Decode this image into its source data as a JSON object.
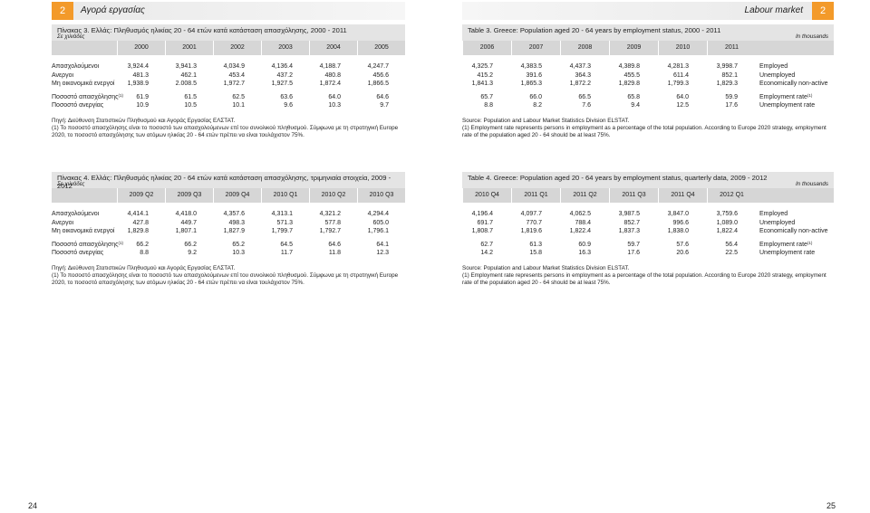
{
  "left": {
    "header": {
      "section_number": "2",
      "section_title": "Αγορά εργασίας"
    },
    "tables": [
      {
        "title": "Πίνακας 3. Ελλάς: Πληθυσμός ηλικίας 20 - 64 ετών κατά κατάσταση απασχόλησης, 2000 - 2011",
        "unit": "Σε χιλιάδες",
        "columns": [
          "2000",
          "2001",
          "2002",
          "2003",
          "2004",
          "2005"
        ],
        "groups": [
          [
            {
              "label": "Απασχολούμενοι",
              "values": [
                "3,924.4",
                "3,941.3",
                "4,034.9",
                "4,136.4",
                "4,188.7",
                "4,247.7"
              ]
            },
            {
              "label": "Ανεργοι",
              "values": [
                "481.3",
                "462.1",
                "453.4",
                "437.2",
                "480.8",
                "456.6"
              ]
            },
            {
              "label": "Μη οικονομικά ενεργοί",
              "values": [
                "1,938.9",
                "2.008.5",
                "1,972.7",
                "1,927.5",
                "1,872.4",
                "1,866.5"
              ]
            }
          ],
          [
            {
              "label": "Ποσοστό απασχόλησης",
              "sup": "(1)",
              "values": [
                "61.9",
                "61.5",
                "62.5",
                "63.6",
                "64.0",
                "64.6"
              ]
            },
            {
              "label": "Ποσοστό ανεργίας",
              "values": [
                "10.9",
                "10.5",
                "10.1",
                "9.6",
                "10.3",
                "9.7"
              ]
            }
          ]
        ],
        "source": "Πηγή: Διεύθυνση Στατιστικών Πληθυσμού και Αγοράς Εργασίας ΕΛΣΤΑΤ.",
        "note": "(1) Το ποσοστό απασχόλησης είναι το ποσοστό των απασχολούμενων επί του συνολικού πληθυσμού. Σύμφωνα με τη στρατηγική Europe 2020, το ποσοστό απασχόλησης των ατόμων ηλικίας 20 - 64 ετών πρέπει να είναι τουλάχιστον 75%."
      },
      {
        "title": "Πίνακας 4. Ελλάς: Πληθυσμός ηλικίας 20 - 64 ετών κατά κατάσταση απασχόλησης, τριμηνιαία στοιχεία, 2009 - 2012",
        "unit": "Σε χιλιάδες",
        "columns": [
          "2009 Q2",
          "2009 Q3",
          "2009 Q4",
          "2010 Q1",
          "2010 Q2",
          "2010 Q3"
        ],
        "groups": [
          [
            {
              "label": "Απασχολούμενοι",
              "values": [
                "4,414.1",
                "4,418.0",
                "4,357.6",
                "4,313.1",
                "4,321.2",
                "4,294.4"
              ]
            },
            {
              "label": "Ανεργοι",
              "values": [
                "427.8",
                "449.7",
                "498.3",
                "571.3",
                "577.8",
                "605.0"
              ]
            },
            {
              "label": "Μη οικονομικά ενεργοί",
              "values": [
                "1,829.8",
                "1,807.1",
                "1,827.9",
                "1,799.7",
                "1,792.7",
                "1,796.1"
              ]
            }
          ],
          [
            {
              "label": "Ποσοστό απασχόλησης",
              "sup": "(1)",
              "values": [
                "66.2",
                "66.2",
                "65.2",
                "64.5",
                "64.6",
                "64.1"
              ]
            },
            {
              "label": "Ποσοστό ανεργίας",
              "values": [
                "8.8",
                "9.2",
                "10.3",
                "11.7",
                "11.8",
                "12.3"
              ]
            }
          ]
        ],
        "source": "Πηγή: Διεύθυνση Στατιστικών Πληθυσμού και Αγοράς Εργασίας ΕΛΣΤΑΤ.",
        "note": "(1) Το ποσοστό απασχόλησης είναι το ποσοστό των απασχολούμενων επί του συνολικού πληθυσμού. Σύμφωνα με τη στρατηγική Europe 2020, το ποσοστό απασχόλησης των ατόμων ηλικίας 20 - 64 ετών πρέπει να είναι τουλάχιστον 75%."
      }
    ],
    "page_number": "24"
  },
  "right": {
    "header": {
      "section_number": "2",
      "section_title": "Labour market"
    },
    "tables": [
      {
        "title": "Table 3. Greece: Population aged 20 - 64 years by employment status, 2000 - 2011",
        "unit": "In thousands",
        "columns": [
          "2006",
          "2007",
          "2008",
          "2009",
          "2010",
          "2011"
        ],
        "groups": [
          [
            {
              "label": "Employed",
              "values": [
                "4,325.7",
                "4,383.5",
                "4,437.3",
                "4,389.8",
                "4,281.3",
                "3,998.7"
              ]
            },
            {
              "label": "Unemployed",
              "values": [
                "415.2",
                "391.6",
                "364.3",
                "455.5",
                "611.4",
                "852.1"
              ]
            },
            {
              "label": "Economically non-active",
              "values": [
                "1,841.3",
                "1,865.3",
                "1,872.2",
                "1,829.8",
                "1,799.3",
                "1,829.3"
              ]
            }
          ],
          [
            {
              "label": "Employment rate",
              "sup": "(1)",
              "values": [
                "65.7",
                "66.0",
                "66.5",
                "65.8",
                "64.0",
                "59.9"
              ]
            },
            {
              "label": "Unemployment rate",
              "values": [
                "8.8",
                "8.2",
                "7.6",
                "9.4",
                "12.5",
                "17.6"
              ]
            }
          ]
        ],
        "source": "Source: Population and Labour Market Statistics Division ELSTAT.",
        "note": "(1) Employment rate represents persons in employment as a percentage of the total population. According to Europe 2020 strategy, employment rate of the population aged 20 - 64 should be at least 75%."
      },
      {
        "title": "Table 4. Greece: Population aged 20 - 64 years by employment status, quarterly data, 2009 - 2012",
        "unit": "In thousands",
        "columns": [
          "2010 Q4",
          "2011 Q1",
          "2011 Q2",
          "2011 Q3",
          "2011 Q4",
          "2012 Q1"
        ],
        "groups": [
          [
            {
              "label": "Employed",
              "values": [
                "4,196.4",
                "4,097.7",
                "4,062.5",
                "3,987.5",
                "3,847.0",
                "3,759.6"
              ]
            },
            {
              "label": "Unemployed",
              "values": [
                "691.7",
                "770.7",
                "788.4",
                "852.7",
                "996.6",
                "1,089.0"
              ]
            },
            {
              "label": "Economically non-active",
              "values": [
                "1,808.7",
                "1,819.6",
                "1,822.4",
                "1,837.3",
                "1,838.0",
                "1,822.4"
              ]
            }
          ],
          [
            {
              "label": "Employment rate",
              "sup": "(1)",
              "values": [
                "62.7",
                "61.3",
                "60.9",
                "59.7",
                "57.6",
                "56.4"
              ]
            },
            {
              "label": "Unemployment rate",
              "values": [
                "14.2",
                "15.8",
                "16.3",
                "17.6",
                "20.6",
                "22.5"
              ]
            }
          ]
        ],
        "source": "Source: Population and Labour Market Statistics Division ELSTAT.",
        "note": "(1) Employment rate represents persons in employment as a percentage of the total population. According to Europe 2020 strategy, employment rate of the population aged 20 - 64 should be at least 75%."
      }
    ],
    "page_number": "25"
  }
}
